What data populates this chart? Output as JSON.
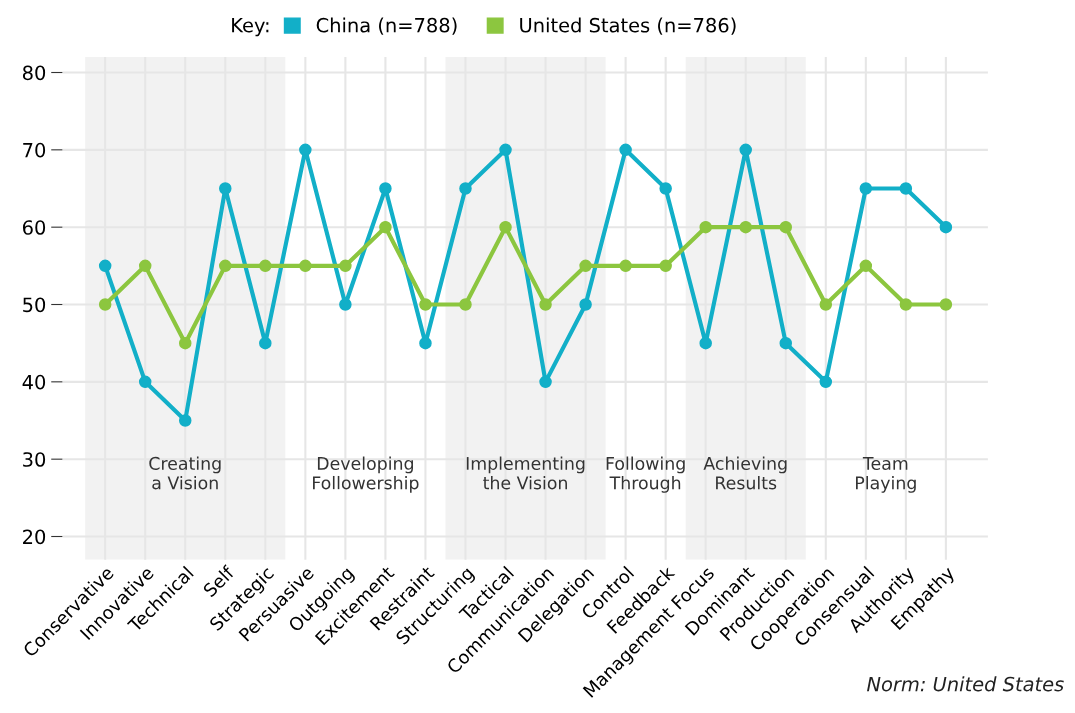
{
  "chart_data": {
    "type": "line",
    "legend_title": "Key:",
    "legend": "top",
    "categories": [
      "Conservative",
      "Innovative",
      "Technical",
      "Self",
      "Strategic",
      "Persuasive",
      "Outgoing",
      "Excitement",
      "Restraint",
      "Structuring",
      "Tactical",
      "Communication",
      "Delegation",
      "Control",
      "Feedback",
      "Management Focus",
      "Dominant",
      "Production",
      "Cooperation",
      "Consensual",
      "Authority",
      "Empathy"
    ],
    "series": [
      {
        "name": "China (n=788)",
        "color": "#12afc8",
        "values": [
          55,
          40,
          35,
          65,
          45,
          70,
          50,
          65,
          45,
          65,
          70,
          40,
          50,
          70,
          65,
          45,
          70,
          45,
          40,
          65,
          65,
          60
        ]
      },
      {
        "name": "United States (n=786)",
        "color": "#8cc63f",
        "values": [
          50,
          55,
          45,
          55,
          55,
          55,
          55,
          60,
          50,
          50,
          60,
          50,
          55,
          55,
          55,
          60,
          60,
          60,
          50,
          55,
          50,
          50
        ]
      }
    ],
    "ylim": [
      17,
      82
    ],
    "yticks": [
      20,
      30,
      40,
      50,
      60,
      70,
      80
    ],
    "grid": true,
    "marker": "circle",
    "line_style": "solid",
    "bands": [
      {
        "axis": "x",
        "from": "Conservative",
        "to": "Strategic",
        "label": "Creating\na Vision",
        "color": "#f2f2f2"
      },
      {
        "axis": "x",
        "from": "Structuring",
        "to": "Delegation",
        "label": "Implementing\nthe Vision",
        "color": "#f2f2f2"
      },
      {
        "axis": "x",
        "from": "Management Focus",
        "to": "Production",
        "label": "Achieving\nResults",
        "color": "#f2f2f2"
      }
    ],
    "annotations": [
      "Developing\nFollowership",
      "Following\nThrough",
      "Team\nPlaying",
      "Norm: United States"
    ]
  }
}
